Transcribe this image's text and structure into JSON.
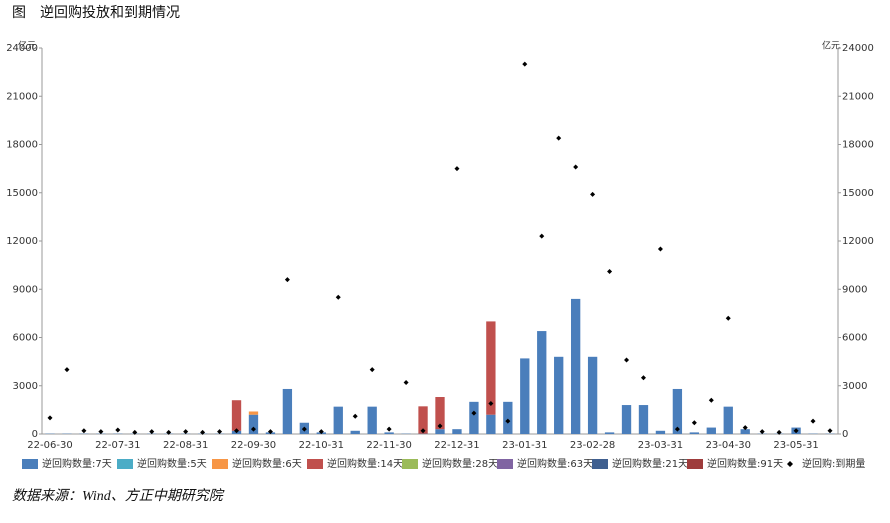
{
  "title": "图　逆回购投放和到期情况",
  "source": "数据来源：Wind、方正中期研究院",
  "chart_data": {
    "type": "bar",
    "stacked": true,
    "unit_left": "亿元",
    "unit_right": "亿元",
    "categories": [
      "22-06-30",
      null,
      null,
      null,
      "22-07-31",
      null,
      null,
      null,
      "22-08-31",
      null,
      null,
      null,
      "22-09-30",
      null,
      null,
      null,
      "22-10-31",
      null,
      null,
      null,
      "22-11-30",
      null,
      null,
      null,
      "22-12-31",
      null,
      null,
      null,
      "23-01-31",
      null,
      null,
      null,
      "23-02-28",
      null,
      null,
      null,
      "23-03-31",
      null,
      null,
      null,
      "23-04-30",
      null,
      null,
      null,
      "23-05-31",
      null,
      null
    ],
    "ylim": [
      0,
      24000
    ],
    "yticks": [
      0,
      3000,
      6000,
      9000,
      12000,
      15000,
      18000,
      21000,
      24000
    ],
    "y2lim": [
      0,
      24000
    ],
    "y2ticks": [
      0,
      3000,
      6000,
      9000,
      12000,
      15000,
      18000,
      21000,
      24000
    ],
    "series": [
      {
        "name": "逆回购数量:7天",
        "color": "#4a7ebb",
        "values": [
          20,
          20,
          20,
          20,
          20,
          20,
          20,
          20,
          20,
          20,
          20,
          200,
          1200,
          100,
          2800,
          700,
          100,
          1700,
          200,
          1700,
          100,
          20,
          20,
          300,
          300,
          2000,
          1200,
          2000,
          4700,
          6400,
          4800,
          8400,
          4800,
          100,
          1800,
          1800,
          200,
          2800,
          100,
          400,
          1700,
          300,
          20,
          20,
          400,
          20,
          20
        ]
      },
      {
        "name": "逆回购数量:5天",
        "color": "#4bacc6",
        "values": [
          null,
          null,
          null,
          null,
          null,
          null,
          null,
          null,
          null,
          null,
          null,
          null,
          null,
          null,
          null,
          null,
          null,
          null,
          null,
          null,
          null,
          null,
          null,
          null,
          null,
          null,
          null,
          null,
          null,
          null,
          null,
          null,
          null,
          null,
          null,
          null,
          null,
          null,
          null,
          null,
          null,
          null,
          null,
          null,
          null,
          null,
          null
        ]
      },
      {
        "name": "逆回购数量:6天",
        "color": "#f79646",
        "values": [
          null,
          null,
          null,
          null,
          null,
          null,
          null,
          null,
          null,
          null,
          null,
          null,
          200,
          null,
          null,
          null,
          null,
          null,
          null,
          null,
          null,
          null,
          null,
          null,
          null,
          null,
          null,
          null,
          null,
          null,
          null,
          null,
          null,
          null,
          null,
          null,
          null,
          null,
          null,
          null,
          null,
          null,
          null,
          null,
          null,
          null,
          null
        ]
      },
      {
        "name": "逆回购数量:14天",
        "color": "#c0504d",
        "values": [
          null,
          null,
          null,
          null,
          null,
          null,
          null,
          null,
          null,
          null,
          null,
          1900,
          null,
          null,
          null,
          null,
          null,
          null,
          null,
          null,
          null,
          null,
          1700,
          2000,
          null,
          null,
          5800,
          null,
          null,
          null,
          null,
          null,
          null,
          null,
          null,
          null,
          null,
          null,
          null,
          null,
          null,
          null,
          null,
          null,
          null,
          null,
          null
        ]
      },
      {
        "name": "逆回购数量:28天",
        "color": "#9bbb59",
        "values": [
          null,
          null,
          null,
          null,
          null,
          null,
          null,
          null,
          null,
          null,
          null,
          null,
          null,
          null,
          null,
          null,
          null,
          null,
          null,
          null,
          null,
          null,
          null,
          null,
          null,
          null,
          null,
          null,
          null,
          null,
          null,
          null,
          null,
          null,
          null,
          null,
          null,
          null,
          null,
          null,
          null,
          null,
          null,
          null,
          null,
          null,
          null
        ]
      },
      {
        "name": "逆回购数量:63天",
        "color": "#8064a2",
        "values": [
          null,
          null,
          null,
          null,
          null,
          null,
          null,
          null,
          null,
          null,
          null,
          null,
          null,
          null,
          null,
          null,
          null,
          null,
          null,
          null,
          null,
          null,
          null,
          null,
          null,
          null,
          null,
          null,
          null,
          null,
          null,
          null,
          null,
          null,
          null,
          null,
          null,
          null,
          null,
          null,
          null,
          null,
          null,
          null,
          null,
          null,
          null
        ]
      },
      {
        "name": "逆回购数量:21天",
        "color": "#3f5f8f",
        "values": [
          null,
          null,
          null,
          null,
          null,
          null,
          null,
          null,
          null,
          null,
          null,
          null,
          null,
          null,
          null,
          null,
          null,
          null,
          null,
          null,
          null,
          null,
          null,
          null,
          null,
          null,
          null,
          null,
          null,
          null,
          null,
          null,
          null,
          null,
          null,
          null,
          null,
          null,
          null,
          null,
          null,
          null,
          null,
          null,
          null,
          null,
          null
        ]
      },
      {
        "name": "逆回购数量:91天",
        "color": "#9e3b3b",
        "values": [
          null,
          null,
          null,
          null,
          null,
          null,
          null,
          null,
          null,
          null,
          null,
          null,
          null,
          null,
          null,
          null,
          null,
          null,
          null,
          null,
          null,
          null,
          null,
          null,
          null,
          null,
          null,
          null,
          null,
          null,
          null,
          null,
          null,
          null,
          null,
          null,
          null,
          null,
          null,
          null,
          null,
          null,
          null,
          null,
          null,
          null,
          null
        ]
      },
      {
        "name": "逆回购:到期量",
        "color": "#000000",
        "type": "scatter",
        "values": [
          1000,
          4000,
          200,
          150,
          250,
          100,
          150,
          100,
          150,
          100,
          150,
          200,
          300,
          150,
          9600,
          300,
          150,
          8500,
          1100,
          4000,
          300,
          3200,
          200,
          500,
          16500,
          1300,
          1900,
          800,
          23000,
          12300,
          18400,
          16600,
          14900,
          10100,
          4600,
          3500,
          11500,
          300,
          700,
          2100,
          7200,
          400,
          150,
          100,
          200,
          800,
          200
        ]
      }
    ]
  }
}
